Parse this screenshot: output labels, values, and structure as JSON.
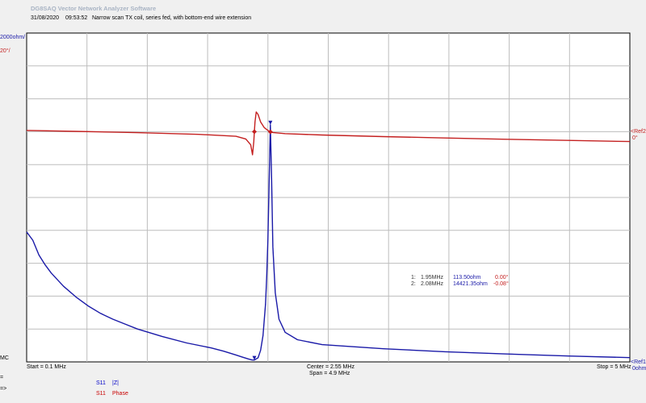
{
  "header": {
    "app_title": "DG8SAQ Vector Network Analyzer Software",
    "date": "31/08/2020",
    "time": "09:53:52",
    "description": "Narrow scan TX coil, series fed, with bottom-end wire extension"
  },
  "left_labels": {
    "ref1_scale": "2000ohm/",
    "ref2_scale": "20°/",
    "mc": "MC",
    "eq": "=",
    "arrow": "=>"
  },
  "right_labels": {
    "ref2": "<Ref2",
    "ref2_value": "0°",
    "ref1": "<Ref1",
    "ref1_value": "0ohm"
  },
  "footer": {
    "start": "Start = 0.1 MHz",
    "center": "Center = 2.55 MHz",
    "span": "Span = 4.9 MHz",
    "stop": "Stop = 5 MHz"
  },
  "legend": [
    {
      "param": "S11",
      "name": "|Z|",
      "color": "#0000c8"
    },
    {
      "param": "S11",
      "name": "Phase",
      "color": "#c80000"
    }
  ],
  "markers": [
    {
      "id": "1:",
      "freq": "1.95MHz",
      "z": "113.50ohm",
      "phase": "0.00°"
    },
    {
      "id": "2:",
      "freq": "2.08MHz",
      "z": "14421.35ohm",
      "phase": "-0.08°"
    }
  ],
  "colors": {
    "impedance": "#1a1aa8",
    "phase": "#c42020",
    "grid": "#bdbdbd",
    "plot_bg": "#ffffff"
  },
  "chart_data": {
    "type": "line",
    "x_axis": {
      "start_mhz": 0.1,
      "center_mhz": 2.55,
      "span_mhz": 4.9,
      "stop_mhz": 5.0,
      "divisions": 10
    },
    "y_axis_impedance": {
      "unit": "ohm",
      "per_div": 2000,
      "ref": 0,
      "ref_position": "bottom",
      "divisions": 10
    },
    "y_axis_phase": {
      "unit": "deg",
      "per_div": 20,
      "ref": 0,
      "ref_position_div_from_top": 3
    },
    "grid": true,
    "series": [
      {
        "name": "|Z|",
        "color": "#1a1aa8",
        "x": [
          0.1,
          0.15,
          0.2,
          0.25,
          0.3,
          0.4,
          0.5,
          0.6,
          0.7,
          0.8,
          0.9,
          1.0,
          1.2,
          1.4,
          1.6,
          1.7,
          1.8,
          1.85,
          1.9,
          1.93,
          1.95,
          1.98,
          2.0,
          2.02,
          2.04,
          2.05,
          2.06,
          2.07,
          2.08,
          2.09,
          2.1,
          2.12,
          2.15,
          2.2,
          2.3,
          2.5,
          3.0,
          3.5,
          4.0,
          4.5,
          5.0
        ],
        "y": [
          7900,
          7400,
          6500,
          5900,
          5400,
          4600,
          3950,
          3400,
          2950,
          2600,
          2300,
          2000,
          1550,
          1150,
          850,
          650,
          420,
          300,
          180,
          120,
          113.5,
          250,
          700,
          1600,
          3500,
          5200,
          7500,
          11000,
          14421,
          11000,
          7000,
          4200,
          2600,
          1800,
          1350,
          1050,
          800,
          620,
          480,
          360,
          260
        ]
      },
      {
        "name": "Phase",
        "color": "#c42020",
        "x": [
          0.1,
          0.5,
          1.0,
          1.5,
          1.8,
          1.88,
          1.92,
          1.935,
          1.945,
          1.95,
          1.955,
          1.965,
          1.98,
          2.0,
          2.03,
          2.06,
          2.08,
          2.1,
          2.2,
          2.5,
          3.0,
          3.5,
          4.0,
          4.5,
          5.0
        ],
        "y": [
          0.8,
          0.2,
          -0.6,
          -1.6,
          -2.8,
          -4.4,
          -8.0,
          -14.0,
          -6.0,
          0.0,
          6.0,
          12.0,
          10.5,
          6.0,
          2.5,
          0.8,
          -0.08,
          -0.5,
          -1.2,
          -2.0,
          -3.0,
          -3.8,
          -4.6,
          -5.3,
          -6.0
        ]
      }
    ]
  }
}
